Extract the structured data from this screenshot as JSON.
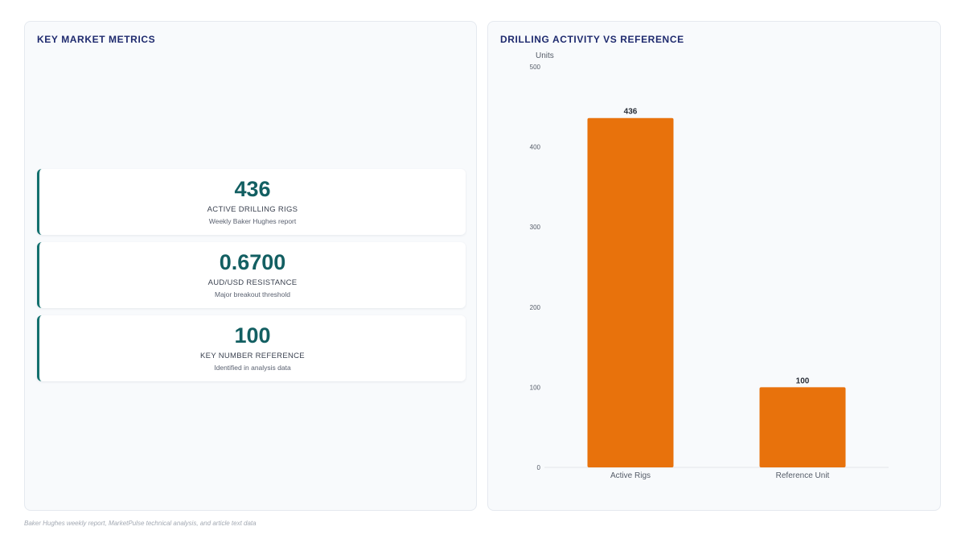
{
  "left_panel": {
    "title": "KEY MARKET METRICS",
    "metrics": [
      {
        "value": "436",
        "label": "ACTIVE DRILLING RIGS",
        "sublabel": "Weekly Baker Hughes report"
      },
      {
        "value": "0.6700",
        "label": "AUD/USD RESISTANCE",
        "sublabel": "Major breakout threshold"
      },
      {
        "value": "100",
        "label": "KEY NUMBER REFERENCE",
        "sublabel": "Identified in analysis data"
      }
    ]
  },
  "right_panel": {
    "title": "DRILLING ACTIVITY VS REFERENCE"
  },
  "chart_data": {
    "type": "bar",
    "categories": [
      "Active Rigs",
      "Reference Unit"
    ],
    "values": [
      436,
      100
    ],
    "data_labels": [
      "436",
      "100"
    ],
    "ylabel": "Units",
    "ylim": [
      0,
      500
    ],
    "yticks": [
      0,
      100,
      200,
      300,
      400,
      500
    ],
    "grid": false,
    "bar_color": "#e8720c"
  },
  "footnote": "Baker Hughes weekly report, MarketPulse technical analysis, and article text data",
  "colors": {
    "accent": "#13706e",
    "value": "#135f62",
    "title": "#1e2a6e"
  }
}
